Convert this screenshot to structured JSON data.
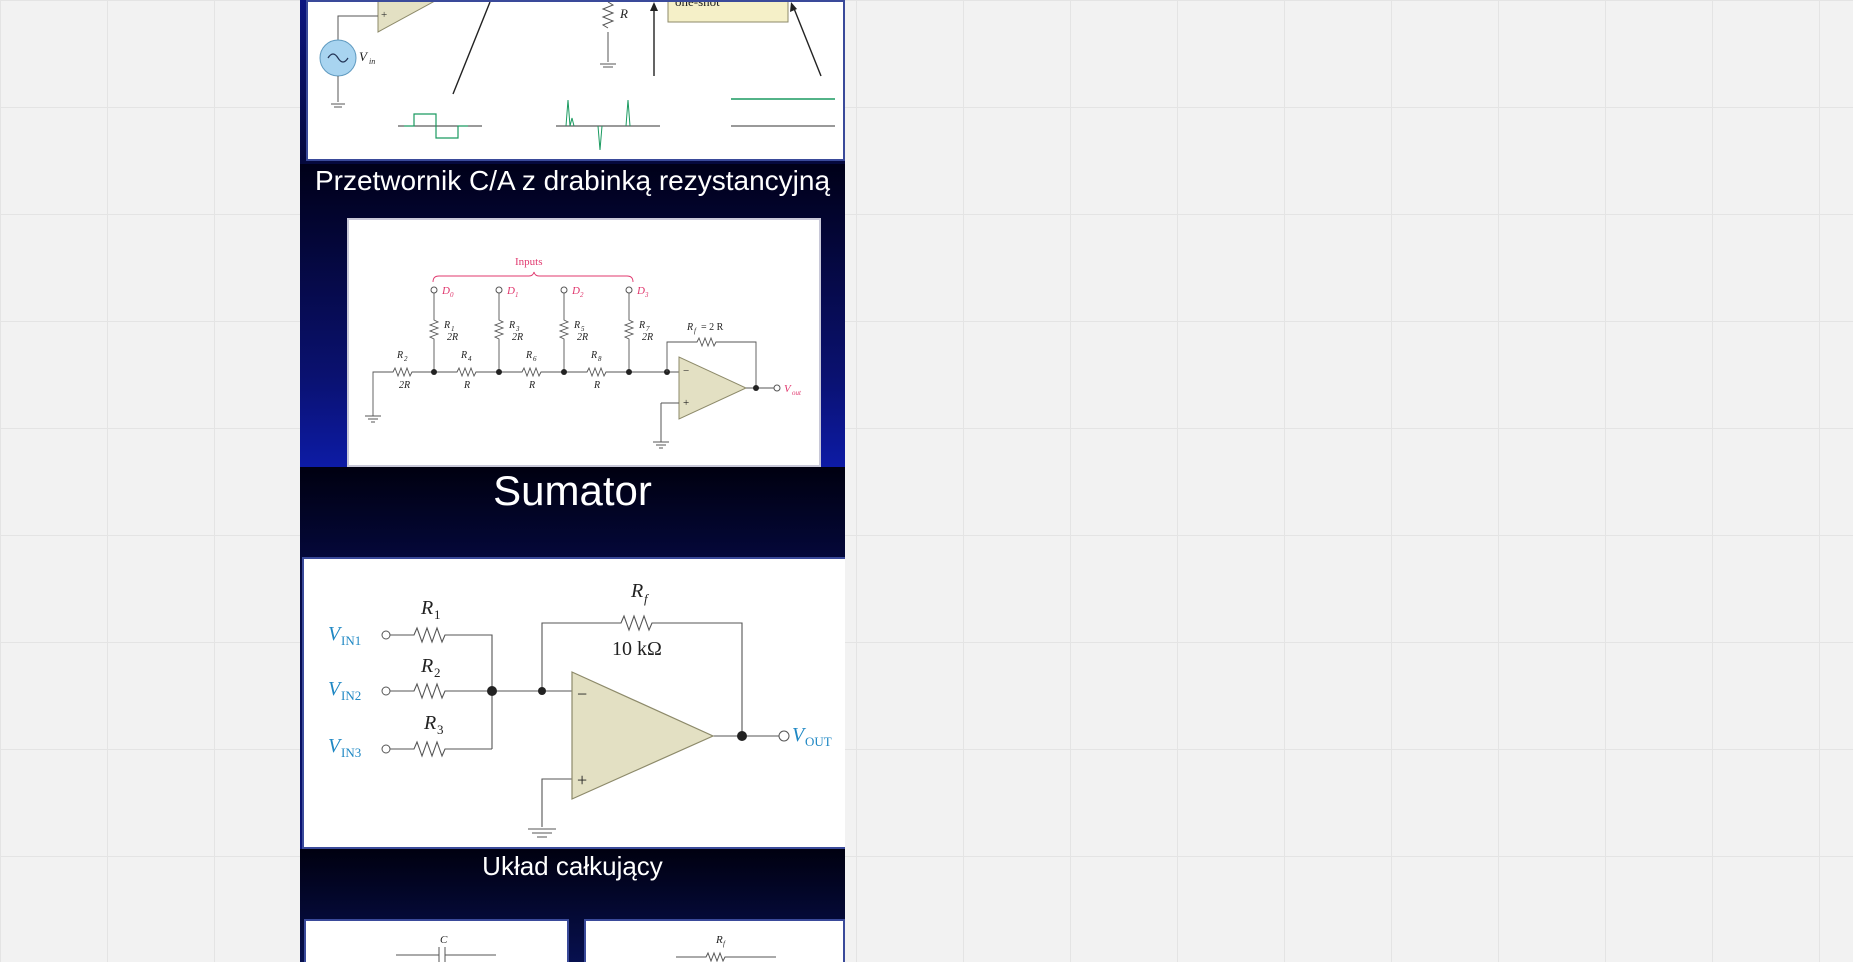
{
  "slides": {
    "slide1": {
      "labels": {
        "one_shot": "one-shot",
        "r": "R",
        "vin": "V",
        "vin_sub": "in",
        "plus": "+"
      }
    },
    "slide2": {
      "title": "Przetwornik C/A z drabinką rezystancyjną",
      "labels": {
        "inputs": "Inputs",
        "d0": "D",
        "d0_sub": "0",
        "d1": "D",
        "d1_sub": "1",
        "d2": "D",
        "d2_sub": "2",
        "d3": "D",
        "d3_sub": "3",
        "r1": "R",
        "r1_sub": "1",
        "r1_val": "2R",
        "r3": "R",
        "r3_sub": "3",
        "r3_val": "2R",
        "r5": "R",
        "r5_sub": "5",
        "r5_val": "2R",
        "r7": "R",
        "r7_sub": "7",
        "r7_val": "2R",
        "r2": "R",
        "r2_sub": "2",
        "r2_val": "2R",
        "r4": "R",
        "r4_sub": "4",
        "r4_val": "R",
        "r6": "R",
        "r6_sub": "6",
        "r6_val": "R",
        "r8": "R",
        "r8_sub": "8",
        "r8_val": "R",
        "rf": "R",
        "rf_sub": "f",
        "rf_val": "= 2 R",
        "minus": "−",
        "plus": "+",
        "vout": "V",
        "vout_sub": "out"
      }
    },
    "slide3": {
      "title": "Sumator",
      "labels": {
        "r1": "R",
        "r1_sub": "1",
        "r2": "R",
        "r2_sub": "2",
        "r3": "R",
        "r3_sub": "3",
        "rf": "R",
        "rf_sub": "f",
        "rf_val": "10 kΩ",
        "vin1": "V",
        "vin1_sub": "IN1",
        "vin2": "V",
        "vin2_sub": "IN2",
        "vin3": "V",
        "vin3_sub": "IN3",
        "vout": "V",
        "vout_sub": "OUT",
        "minus": "−",
        "plus": "+"
      }
    },
    "slide4": {
      "title": "Układ całkujący",
      "labels": {
        "c": "C",
        "rf": "R",
        "rf_sub": "f"
      }
    }
  },
  "colors": {
    "canvas": "#f2f2f2",
    "opamp_fill": "#e3e0c3",
    "opamp_stroke": "#8d8a6a",
    "circuit_line": "#555555",
    "pink_label": "#e0386e",
    "blue_label": "#2088c4",
    "green_wave": "#1a9a60",
    "source_fill": "#a8d4f0"
  }
}
